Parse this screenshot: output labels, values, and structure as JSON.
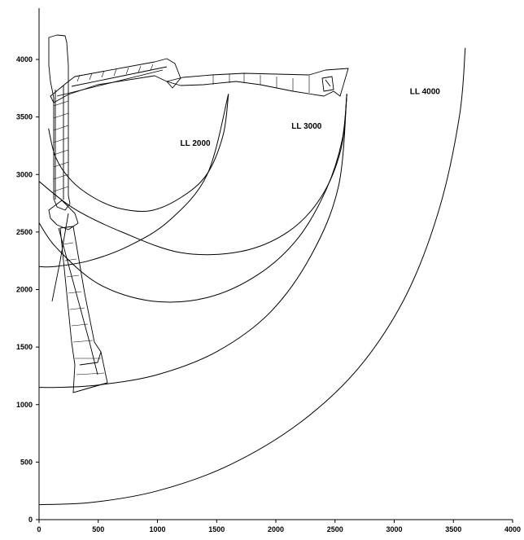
{
  "chart_data": {
    "type": "line",
    "x_ticks": [
      "0",
      "500",
      "1000",
      "1500",
      "2000",
      "2500",
      "3000",
      "3500",
      "4000"
    ],
    "y_ticks": [
      "0",
      "500",
      "1000",
      "1500",
      "2000",
      "2500",
      "3000",
      "3500",
      "4000"
    ],
    "xlim": [
      0,
      4000
    ],
    "ylim": [
      0,
      4300
    ],
    "grid": false,
    "series": [
      {
        "name": "LL 2000",
        "x": [
          1600,
          1554,
          1416,
          1198,
          940,
          680,
          460,
          270,
          140,
          80
        ],
        "y": [
          3700,
          3340,
          3000,
          2800,
          2685,
          2705,
          2800,
          2950,
          3150,
          3400
        ]
      },
      {
        "name": "LL 2000",
        "x": [
          1600,
          1420,
          1100,
          760,
          420,
          130,
          0
        ],
        "y": [
          3700,
          3000,
          2600,
          2380,
          2250,
          2200,
          2200
        ]
      },
      {
        "name": "LL 3000",
        "x": [
          2600,
          2550,
          2380,
          2100,
          1700,
          1200,
          700,
          300,
          0
        ],
        "y": [
          3700,
          3220,
          2800,
          2500,
          2330,
          2320,
          2500,
          2700,
          2940
        ]
      },
      {
        "name": "LL 3000",
        "x": [
          2600,
          2530,
          2300,
          1950,
          1500,
          1000,
          500,
          150,
          0
        ],
        "y": [
          3700,
          2900,
          2300,
          1800,
          1460,
          1260,
          1170,
          1150,
          1150
        ]
      },
      {
        "name": "LL 4000",
        "x": [
          2600,
          2560,
          2430,
          2190,
          1850,
          1420,
          950,
          500,
          150,
          0
        ],
        "y": [
          3700,
          3300,
          2880,
          2450,
          2130,
          1930,
          1900,
          2050,
          2360,
          2580
        ]
      },
      {
        "name": "LL 4000",
        "x": [
          3600,
          3550,
          3380,
          3100,
          2700,
          2200,
          1600,
          1000,
          450,
          0
        ],
        "y": [
          4100,
          3500,
          2700,
          1950,
          1320,
          840,
          470,
          250,
          150,
          130
        ]
      }
    ],
    "annotations": [
      {
        "text": "LL 2000",
        "x": 1320,
        "y": 3250
      },
      {
        "text": "LL 3000",
        "x": 2260,
        "y": 3400
      },
      {
        "text": "LL 4000",
        "x": 3260,
        "y": 3700
      }
    ]
  }
}
